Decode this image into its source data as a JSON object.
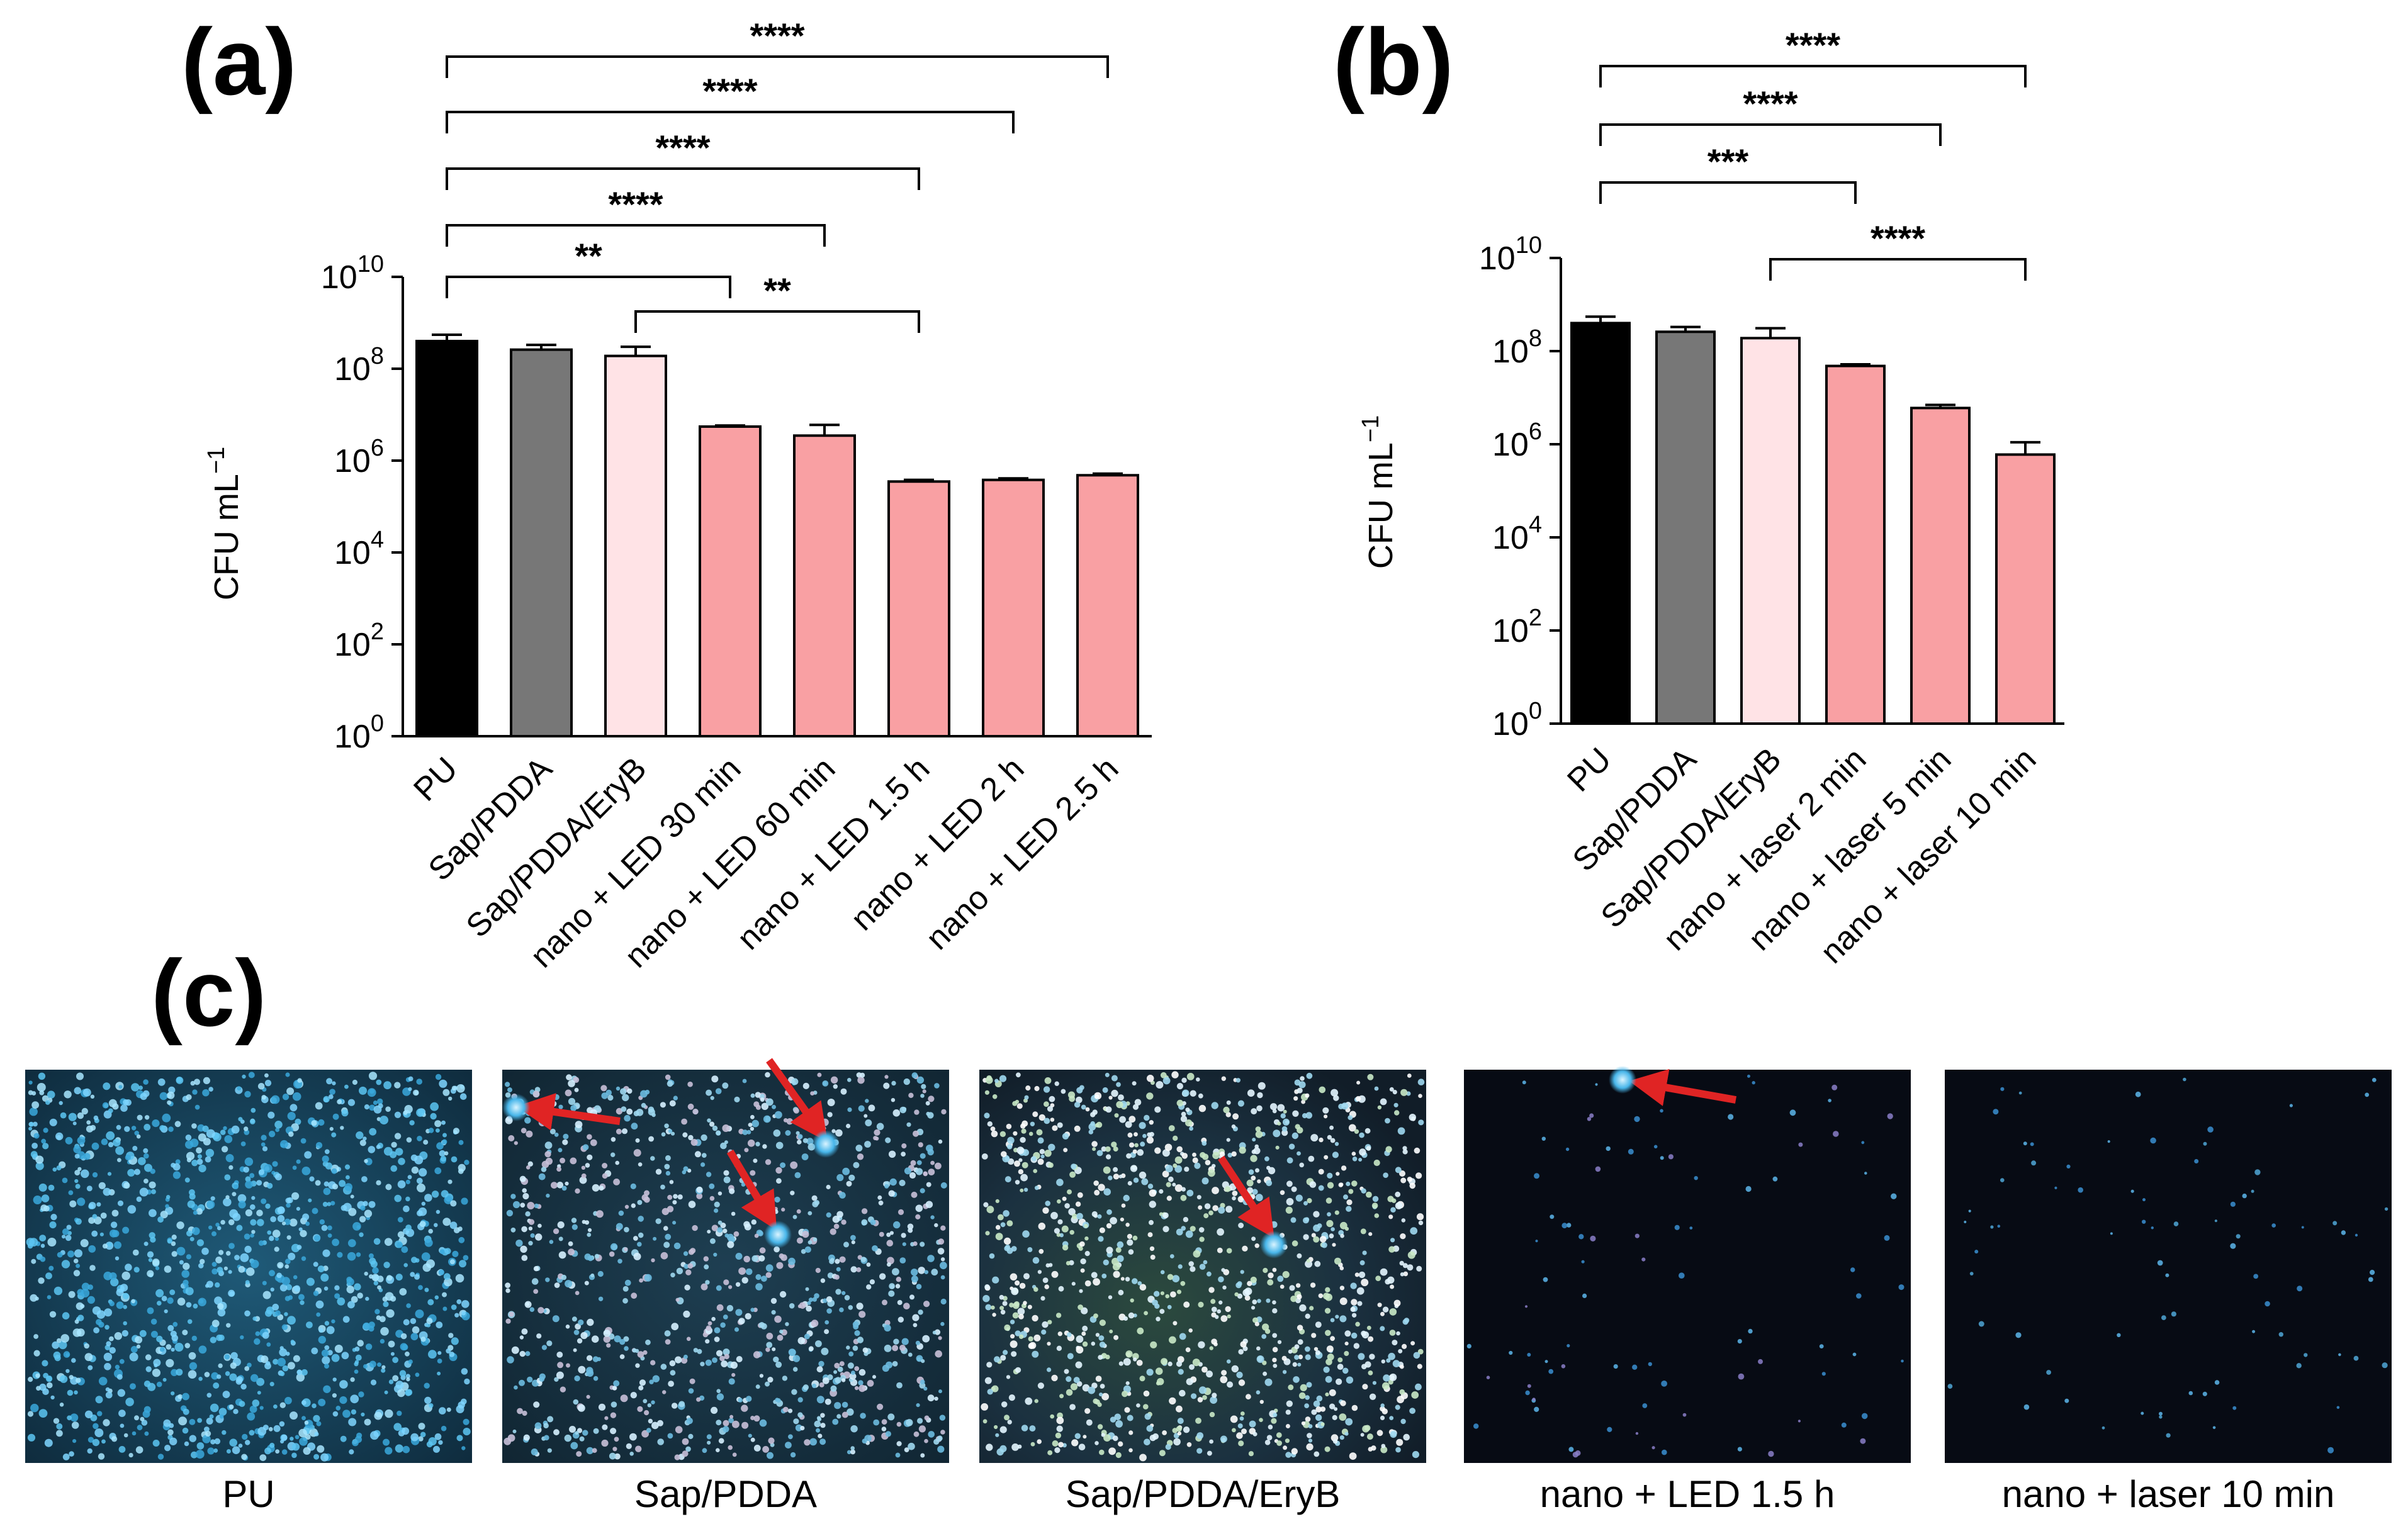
{
  "figure": {
    "panel_labels": [
      "(a)",
      "(b)",
      "(c)"
    ]
  },
  "colors": {
    "PU": "#000000",
    "Sap/PDDA": "#777777",
    "Sap/PDDA/EryB": "#ffe3e6",
    "nano": "#f9a0a3",
    "bracket": "#000000"
  },
  "chart_data": [
    {
      "type": "bar",
      "panel": "(a)",
      "title": "",
      "xlabel": "",
      "ylabel": "CFU mL",
      "ylabel_superscript": "−1",
      "yscale": "log",
      "ylim": [
        1,
        10000000000
      ],
      "yticks": [
        {
          "base": "10",
          "exp": "0",
          "value": 1
        },
        {
          "base": "10",
          "exp": "2",
          "value": 100
        },
        {
          "base": "10",
          "exp": "4",
          "value": 10000
        },
        {
          "base": "10",
          "exp": "6",
          "value": 1000000
        },
        {
          "base": "10",
          "exp": "8",
          "value": 100000000
        },
        {
          "base": "10",
          "exp": "10",
          "value": 10000000000
        }
      ],
      "categories": [
        "PU",
        "Sap/PDDA",
        "Sap/PDDA/EryB",
        "nano + LED 30 min",
        "nano + LED 60 min",
        "nano + LED 1.5 h",
        "nano + LED 2 h",
        "nano + LED 2.5 h"
      ],
      "values": [
        400000000,
        260000000,
        190000000,
        5500000,
        3500000,
        350000,
        380000,
        480000
      ],
      "errors_upper": [
        550000000,
        330000000,
        300000000,
        5800000,
        6000000,
        380000,
        410000,
        520000
      ],
      "bar_colors": [
        "#000000",
        "#777777",
        "#ffe3e6",
        "#f9a0a3",
        "#f9a0a3",
        "#f9a0a3",
        "#f9a0a3",
        "#f9a0a3"
      ],
      "significance": [
        {
          "from": 0,
          "to": 7,
          "label": "****"
        },
        {
          "from": 0,
          "to": 6,
          "label": "****"
        },
        {
          "from": 0,
          "to": 5,
          "label": "****"
        },
        {
          "from": 0,
          "to": 4,
          "label": "****"
        },
        {
          "from": 0,
          "to": 3,
          "label": "**"
        },
        {
          "from": 2,
          "to": 5,
          "label": "**"
        }
      ]
    },
    {
      "type": "bar",
      "panel": "(b)",
      "title": "",
      "xlabel": "",
      "ylabel": "CFU mL",
      "ylabel_superscript": "−1",
      "yscale": "log",
      "ylim": [
        1,
        10000000000
      ],
      "yticks": [
        {
          "base": "10",
          "exp": "0",
          "value": 1
        },
        {
          "base": "10",
          "exp": "2",
          "value": 100
        },
        {
          "base": "10",
          "exp": "4",
          "value": 10000
        },
        {
          "base": "10",
          "exp": "6",
          "value": 1000000
        },
        {
          "base": "10",
          "exp": "8",
          "value": 100000000
        },
        {
          "base": "10",
          "exp": "10",
          "value": 10000000000
        }
      ],
      "categories": [
        "PU",
        "Sap/PDDA",
        "Sap/PDDA/EryB",
        "nano + laser 2 min",
        "nano + laser 5 min",
        "nano + laser 10 min"
      ],
      "values": [
        400000000,
        260000000,
        190000000,
        48000000,
        6000000,
        600000
      ],
      "errors_upper": [
        550000000,
        330000000,
        310000000,
        52000000,
        7000000,
        1100000
      ],
      "bar_colors": [
        "#000000",
        "#777777",
        "#ffe3e6",
        "#f9a0a3",
        "#f9a0a3",
        "#f9a0a3"
      ],
      "significance": [
        {
          "from": 0,
          "to": 5,
          "label": "****"
        },
        {
          "from": 0,
          "to": 4,
          "label": "****"
        },
        {
          "from": 0,
          "to": 3,
          "label": "***"
        },
        {
          "from": 2,
          "to": 5,
          "label": "****"
        }
      ]
    }
  ],
  "micrographs": {
    "captions": [
      "PU",
      "Sap/PDDA",
      "Sap/PDDA/EryB",
      "nano + LED 1.5 h",
      "nano + laser 10 min"
    ],
    "cell_density": [
      "very high",
      "high",
      "high",
      "low",
      "low"
    ],
    "arrow_counts": [
      0,
      3,
      1,
      1,
      0
    ]
  }
}
